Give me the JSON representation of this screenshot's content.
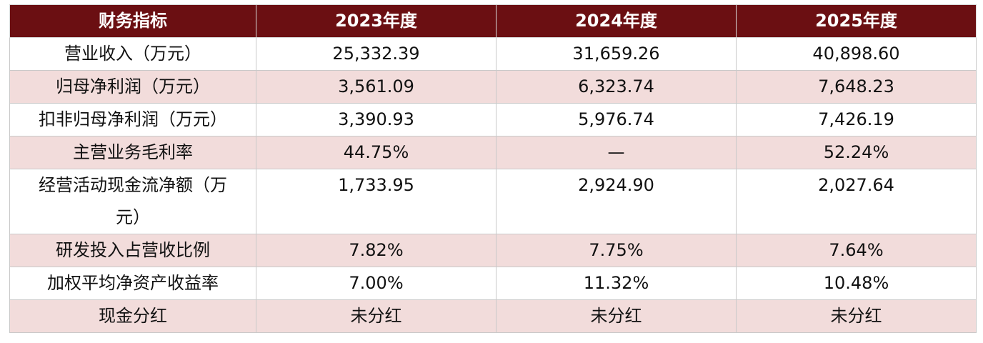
{
  "table": {
    "header": [
      "财务指标",
      "2023年度",
      "2024年度",
      "2025年度"
    ],
    "rows": [
      [
        "营业收入（万元）",
        "25,332.39",
        "31,659.26",
        "40,898.60"
      ],
      [
        "归母净利润（万元）",
        "3,561.09",
        "6,323.74",
        "7,648.23"
      ],
      [
        "扣非归母净利润（万元）",
        "3,390.93",
        "5,976.74",
        "7,426.19"
      ],
      [
        "主营业务毛利率",
        "44.75%",
        "—",
        "52.24%"
      ],
      [
        "经营活动现金流净额（万元）",
        "1,733.95",
        "2,924.90",
        "2,027.64"
      ],
      [
        "研发投入占营收比例",
        "7.82%",
        "7.75%",
        "7.64%"
      ],
      [
        "加权平均净资产收益率",
        "7.00%",
        "11.32%",
        "10.48%"
      ],
      [
        "现金分红",
        "未分红",
        "未分红",
        "未分红"
      ]
    ]
  }
}
